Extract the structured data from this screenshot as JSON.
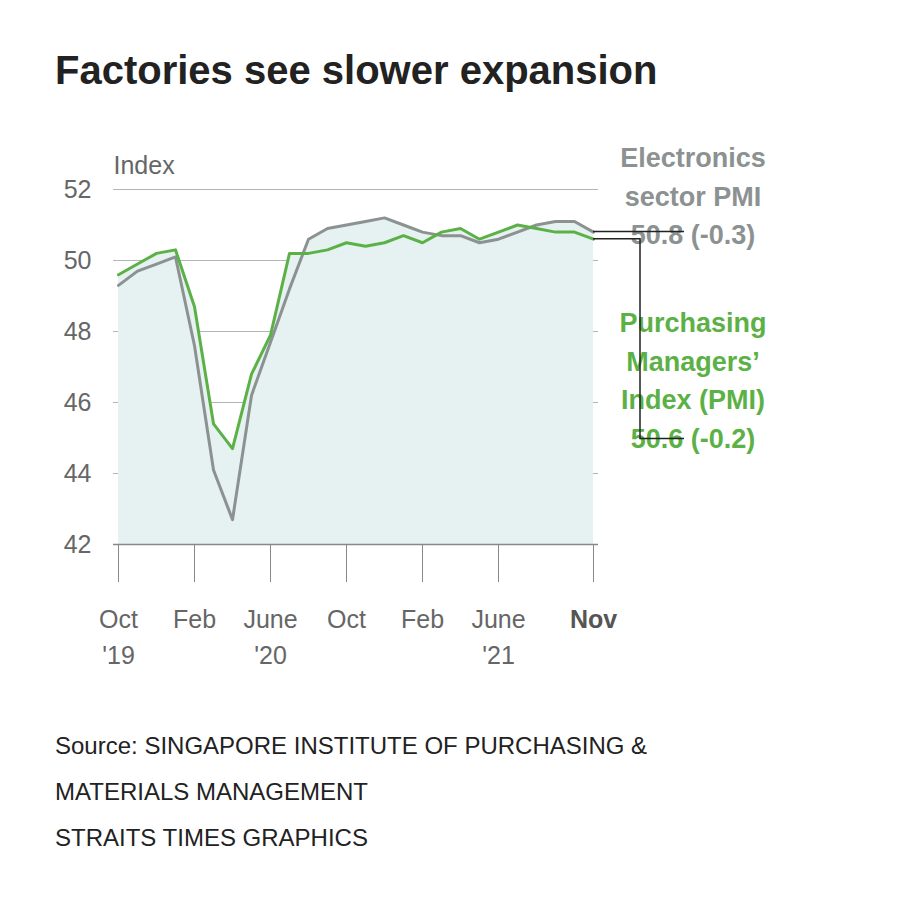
{
  "chart_data": {
    "type": "line",
    "title": "Factories see slower expansion",
    "y_label": "Index",
    "categories": [
      "Oct\n'19",
      null,
      null,
      null,
      "Feb",
      null,
      null,
      null,
      "June\n'20",
      null,
      null,
      null,
      "Oct",
      null,
      null,
      null,
      "Feb",
      null,
      null,
      null,
      "June\n'21",
      null,
      null,
      null,
      null,
      "Nov"
    ],
    "series": [
      {
        "name": "Electronics sector PMI",
        "color": "#8c9191",
        "annotation": "50.8 (-0.3)",
        "values": [
          49.3,
          49.7,
          49.9,
          50.1,
          47.6,
          44.1,
          42.7,
          46.2,
          47.7,
          49.2,
          50.6,
          50.9,
          51.0,
          51.1,
          51.2,
          51.0,
          50.8,
          50.7,
          50.7,
          50.5,
          50.6,
          50.8,
          51.0,
          51.1,
          51.1,
          50.8
        ]
      },
      {
        "name": "Purchasing Managers’ Index (PMI)",
        "color": "#5cb146",
        "annotation": "50.6 (-0.2)",
        "values": [
          49.6,
          49.9,
          50.2,
          50.3,
          48.7,
          45.4,
          44.7,
          46.8,
          47.9,
          50.2,
          50.2,
          50.3,
          50.5,
          50.4,
          50.5,
          50.7,
          50.5,
          50.8,
          50.9,
          50.6,
          50.8,
          51.0,
          50.9,
          50.8,
          50.8,
          50.6
        ]
      }
    ],
    "ylim": [
      42,
      52
    ],
    "yticks": [
      42,
      44,
      46,
      48,
      50,
      52
    ],
    "grid": true,
    "source": "Source: SINGAPORE INSTITUTE OF PURCHASING & MATERIALS MANAGEMENT",
    "credit": "STRAITS TIMES GRAPHICS"
  }
}
